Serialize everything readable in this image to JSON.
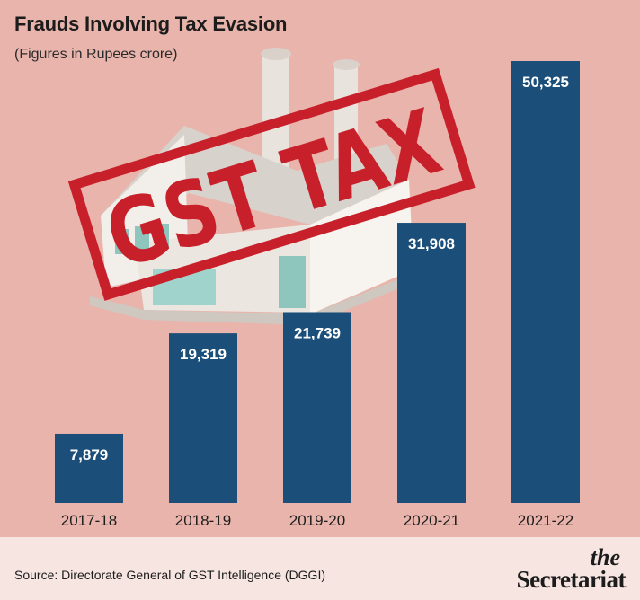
{
  "chart_data": {
    "type": "bar",
    "title": "Frauds Involving Tax Evasion",
    "subtitle": "(Figures in Rupees crore)",
    "categories": [
      "2017-18",
      "2018-19",
      "2019-20",
      "2020-21",
      "2021-22"
    ],
    "values": [
      7879,
      19319,
      21739,
      31908,
      50325
    ],
    "value_labels": [
      "7,879",
      "19,319",
      "21,739",
      "31,908",
      "50,325"
    ],
    "ylim": [
      0,
      50325
    ],
    "bar_color": "#1b4f7a",
    "grid": false,
    "xlabel": "",
    "ylabel": ""
  },
  "illustration": {
    "stamp_text": "GST TAX",
    "stamp_color": "#c8202a"
  },
  "footer": {
    "source": "Source: Directorate General of GST Intelligence (DGGI)",
    "brand_the": "the",
    "brand_name": "Secretariat"
  },
  "colors": {
    "background": "#e8b4ab",
    "footer_background": "#f6e5e1",
    "bar": "#1b4f7a"
  }
}
